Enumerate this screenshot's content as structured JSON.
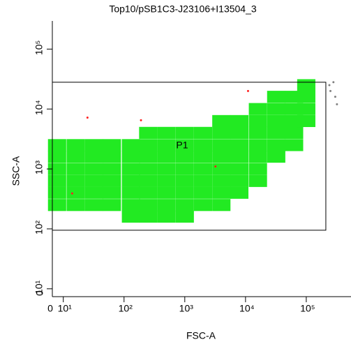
{
  "chart_data": {
    "type": "scatter",
    "title": "Top10/pSB1C3-J23106+I13504_3",
    "x_label": "FSC-A",
    "y_label": "SSC-A",
    "x_zero_label": "0",
    "y_zero_label": "0",
    "log_x": true,
    "log_y": true,
    "xlim": [
      6.6,
      545000
    ],
    "ylim": [
      7.4,
      295000
    ],
    "xticks": [
      {
        "value": 10,
        "label": "10¹"
      },
      {
        "value": 100,
        "label": "10²"
      },
      {
        "value": 1000,
        "label": "10³"
      },
      {
        "value": 10000,
        "label": "10⁴"
      },
      {
        "value": 100000,
        "label": "10⁵"
      }
    ],
    "yticks": [
      {
        "value": 10,
        "label": "10¹"
      },
      {
        "value": 100,
        "label": "10²"
      },
      {
        "value": 1000,
        "label": "10³"
      },
      {
        "value": 10000,
        "label": "10⁴"
      },
      {
        "value": 100000,
        "label": "10⁵"
      }
    ],
    "gate": {
      "name": "P1",
      "xlim": [
        6.6,
        210000
      ],
      "ylim": [
        95,
        28000
      ]
    },
    "series": [
      {
        "color": "#22ea22",
        "marker": "square",
        "x": [
          7.9,
          7.9,
          7.9,
          7.9,
          7.9,
          7.9,
          16,
          16,
          16,
          16,
          16,
          16,
          32,
          32,
          32,
          32,
          32,
          32,
          63,
          63,
          63,
          63,
          63,
          63,
          130,
          130,
          130,
          130,
          130,
          130,
          130,
          250,
          250,
          250,
          250,
          250,
          250,
          250,
          250,
          500,
          500,
          500,
          500,
          500,
          500,
          500,
          500,
          1000,
          1000,
          1000,
          1000,
          1000,
          1000,
          1000,
          1000,
          2000,
          2000,
          2000,
          2000,
          2000,
          2000,
          2000,
          4000,
          4000,
          4000,
          4000,
          4000,
          4000,
          4000,
          4000,
          7900,
          7900,
          7900,
          7900,
          7900,
          7900,
          7900,
          16000,
          16000,
          16000,
          16000,
          16000,
          16000,
          16000,
          32000,
          32000,
          32000,
          32000,
          32000,
          32000,
          63000,
          63000,
          63000,
          63000,
          63000,
          100000,
          100000,
          100000,
          100000
        ],
        "y": [
          250,
          400,
          630,
          1000,
          1600,
          2500,
          250,
          400,
          630,
          1000,
          1600,
          2500,
          250,
          400,
          630,
          1000,
          1600,
          2500,
          250,
          400,
          630,
          1000,
          1600,
          2500,
          160,
          250,
          400,
          630,
          1000,
          1600,
          2500,
          160,
          250,
          400,
          630,
          1000,
          1600,
          2500,
          4000,
          160,
          250,
          400,
          630,
          1000,
          1600,
          2500,
          4000,
          160,
          250,
          400,
          630,
          1000,
          1600,
          2500,
          4000,
          250,
          400,
          630,
          1000,
          1600,
          2500,
          4000,
          250,
          400,
          630,
          1000,
          1600,
          2500,
          4000,
          6300,
          400,
          630,
          1000,
          1600,
          2500,
          4000,
          6300,
          630,
          1000,
          1600,
          2500,
          4000,
          6300,
          10000,
          1600,
          2500,
          4000,
          6300,
          10000,
          16000,
          2500,
          4000,
          6300,
          10000,
          16000,
          6300,
          10000,
          16000,
          25000
        ]
      },
      {
        "color": "#ff2020",
        "marker": "dot",
        "x": [
          11000,
          190,
          25,
          14,
          3200
        ],
        "y": [
          20000,
          6500,
          7200,
          390,
          1100
        ]
      },
      {
        "color": "#808080",
        "marker": "dot",
        "x": [
          250000,
          300000,
          280000,
          320000,
          240000
        ],
        "y": [
          20000,
          16000,
          28000,
          12000,
          25000
        ]
      }
    ]
  }
}
